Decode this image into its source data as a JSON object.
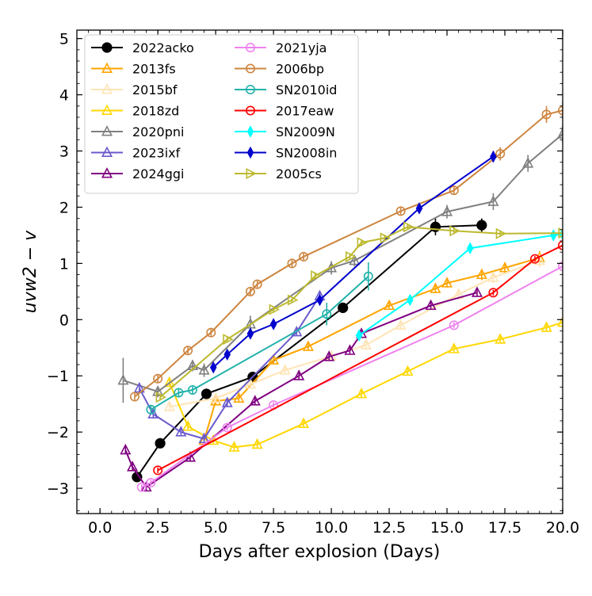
{
  "chart_data": {
    "type": "line",
    "xlabel": "Days after explosion (Days)",
    "ylabel": "uvw2 − v",
    "xlim": [
      -1.0,
      20.0
    ],
    "ylim": [
      -3.45,
      5.15
    ],
    "xticks": [
      0.0,
      2.5,
      5.0,
      7.5,
      10.0,
      12.5,
      15.0,
      17.5,
      20.0
    ],
    "xtick_labels": [
      "0.0",
      "2.5",
      "5.0",
      "7.5",
      "10.0",
      "12.5",
      "15.0",
      "17.5",
      "20.0"
    ],
    "yticks": [
      -3,
      -2,
      -1,
      0,
      1,
      2,
      3,
      4,
      5
    ],
    "ytick_labels": [
      "−3",
      "−2",
      "−1",
      "0",
      "1",
      "2",
      "3",
      "4",
      "5"
    ],
    "legend_position": "top-left",
    "grid": false,
    "series": [
      {
        "name": "2022acko",
        "color": "#000000",
        "marker": "circle-filled",
        "x": [
          1.6,
          2.6,
          4.6,
          6.6,
          10.5,
          14.5,
          16.5
        ],
        "y": [
          -2.8,
          -2.2,
          -1.32,
          -1.02,
          0.21,
          1.65,
          1.68
        ],
        "err": [
          0.08,
          0.08,
          0.06,
          0.08,
          0.08,
          0.15,
          0.12
        ]
      },
      {
        "name": "2013fs",
        "color": "#FFA500",
        "marker": "triangle-open",
        "x": [
          4.5,
          5.0,
          6.0,
          7.5,
          9.0,
          12.5,
          14.5,
          15.0,
          16.5,
          17.5,
          19.0
        ],
        "y": [
          -2.15,
          -1.45,
          -1.4,
          -0.72,
          -0.48,
          0.25,
          0.55,
          0.65,
          0.8,
          0.92,
          1.1
        ],
        "err": [
          0.06,
          0.06,
          0.06,
          0.06,
          0.06,
          0.06,
          0.08,
          0.08,
          0.1,
          0.1,
          0.12
        ]
      },
      {
        "name": "2015bf",
        "color": "#FFE4B5",
        "marker": "triangle-open",
        "x": [
          3.0,
          5.0,
          6.5,
          8.0,
          10.0,
          11.5,
          13.0,
          15.5,
          17.0,
          19.0
        ],
        "y": [
          -1.55,
          -1.4,
          -1.15,
          -0.9,
          -0.65,
          -0.45,
          -0.1,
          0.45,
          0.75,
          1.05
        ],
        "err": [
          0.06,
          0.06,
          0.06,
          0.06,
          0.06,
          0.08,
          0.08,
          0.1,
          0.1,
          0.12
        ]
      },
      {
        "name": "2018zd",
        "color": "#FFD700",
        "marker": "triangle-open",
        "x": [
          3.0,
          3.8,
          4.9,
          5.8,
          6.8,
          8.8,
          11.3,
          13.3,
          15.3,
          17.3,
          19.3,
          20.0
        ],
        "y": [
          -1.12,
          -1.9,
          -2.15,
          -2.27,
          -2.22,
          -1.85,
          -1.32,
          -0.92,
          -0.52,
          -0.35,
          -0.14,
          -0.05
        ],
        "err": [
          0.06,
          0.06,
          0.06,
          0.06,
          0.06,
          0.06,
          0.06,
          0.06,
          0.06,
          0.06,
          0.06,
          0.06
        ]
      },
      {
        "name": "2020pni",
        "color": "#808080",
        "marker": "triangle-open",
        "x": [
          1.0,
          2.5,
          4.0,
          4.5,
          6.5,
          10.0,
          11.0,
          15.0,
          17.0,
          18.5,
          20.0
        ],
        "y": [
          -1.08,
          -1.28,
          -0.82,
          -0.9,
          -0.08,
          0.92,
          1.05,
          1.92,
          2.1,
          2.78,
          3.3
        ],
        "err": [
          0.4,
          0.1,
          0.1,
          0.12,
          0.15,
          0.12,
          0.1,
          0.12,
          0.15,
          0.15,
          0.15
        ]
      },
      {
        "name": "2023ixf",
        "color": "#6A5ACD",
        "marker": "triangle-open",
        "x": [
          1.7,
          2.3,
          3.5,
          4.5,
          5.5,
          8.5,
          9.5
        ],
        "y": [
          -1.22,
          -1.68,
          -2.0,
          -2.12,
          -1.48,
          -0.22,
          0.42
        ],
        "err": [
          0.06,
          0.06,
          0.06,
          0.06,
          0.06,
          0.06,
          0.06
        ]
      },
      {
        "name": "2024ggi",
        "color": "#800080",
        "marker": "triangle-open",
        "x": [
          1.1,
          1.4,
          2.0,
          3.9,
          6.7,
          8.6,
          9.9,
          10.8,
          11.3,
          14.3,
          16.3
        ],
        "y": [
          -2.32,
          -2.62,
          -2.98,
          -2.45,
          -1.45,
          -1.0,
          -0.66,
          -0.55,
          -0.25,
          0.25,
          0.48
        ],
        "err": [
          0.06,
          0.06,
          0.06,
          0.06,
          0.06,
          0.06,
          0.06,
          0.06,
          0.06,
          0.06,
          0.06
        ]
      },
      {
        "name": "2021yja",
        "color": "#EE82EE",
        "marker": "circle-open",
        "x": [
          1.8,
          2.2,
          5.5,
          7.5,
          15.3,
          20.0
        ],
        "y": [
          -2.98,
          -2.9,
          -1.92,
          -1.52,
          -0.1,
          0.95
        ],
        "err": [
          0.05,
          0.05,
          0.05,
          0.05,
          0.05,
          0.05
        ]
      },
      {
        "name": "2006bp",
        "color": "#CD853F",
        "marker": "circle-open",
        "x": [
          1.5,
          2.5,
          3.8,
          4.8,
          6.5,
          6.8,
          8.3,
          8.8,
          13.0,
          15.3,
          17.3,
          19.3,
          20.0
        ],
        "y": [
          -1.37,
          -1.05,
          -0.55,
          -0.23,
          0.5,
          0.63,
          1.0,
          1.12,
          1.93,
          2.3,
          2.95,
          3.65,
          3.72
        ],
        "err": [
          0.06,
          0.06,
          0.06,
          0.06,
          0.06,
          0.06,
          0.06,
          0.06,
          0.06,
          0.08,
          0.12,
          0.15,
          0.15
        ]
      },
      {
        "name": "SN2010id",
        "color": "#20B2AA",
        "marker": "circle-open",
        "x": [
          2.2,
          3.4,
          4.0,
          9.8,
          11.6
        ],
        "y": [
          -1.6,
          -1.3,
          -1.25,
          0.1,
          0.77
        ],
        "err": [
          0.06,
          0.08,
          0.08,
          0.2,
          0.25
        ]
      },
      {
        "name": "2017eaw",
        "color": "#FF0000",
        "marker": "circle-open",
        "x": [
          2.5,
          17.0,
          18.8,
          20.0
        ],
        "y": [
          -2.68,
          0.48,
          1.08,
          1.32
        ],
        "err": [
          0.05,
          0.05,
          0.05,
          0.05
        ]
      },
      {
        "name": "SN2009N",
        "color": "#00FFFF",
        "marker": "diamond-filled",
        "x": [
          11.2,
          13.4,
          16.0,
          19.6,
          20.0
        ],
        "y": [
          -0.28,
          0.35,
          1.27,
          1.5,
          1.52
        ],
        "err": [
          0.06,
          0.06,
          0.06,
          0.06,
          0.06
        ]
      },
      {
        "name": "SN2008in",
        "color": "#0000CD",
        "marker": "diamond-filled",
        "x": [
          4.9,
          5.5,
          6.5,
          7.5,
          9.5,
          13.8,
          17.0
        ],
        "y": [
          -0.85,
          -0.62,
          -0.25,
          -0.08,
          0.35,
          1.98,
          2.9
        ],
        "err": [
          0.08,
          0.08,
          0.08,
          0.08,
          0.08,
          0.08,
          0.1
        ]
      },
      {
        "name": "2005cs",
        "color": "#BDB92F",
        "marker": "triangle-right-open",
        "x": [
          2.6,
          5.5,
          7.5,
          8.3,
          9.3,
          10.8,
          11.3,
          12.3,
          13.3,
          15.3,
          17.3,
          20.0
        ],
        "y": [
          -1.38,
          -0.35,
          0.18,
          0.35,
          0.78,
          1.12,
          1.37,
          1.45,
          1.65,
          1.58,
          1.53,
          1.54
        ],
        "err": [
          0.06,
          0.06,
          0.06,
          0.06,
          0.06,
          0.06,
          0.06,
          0.06,
          0.06,
          0.06,
          0.06,
          0.06
        ]
      }
    ]
  }
}
